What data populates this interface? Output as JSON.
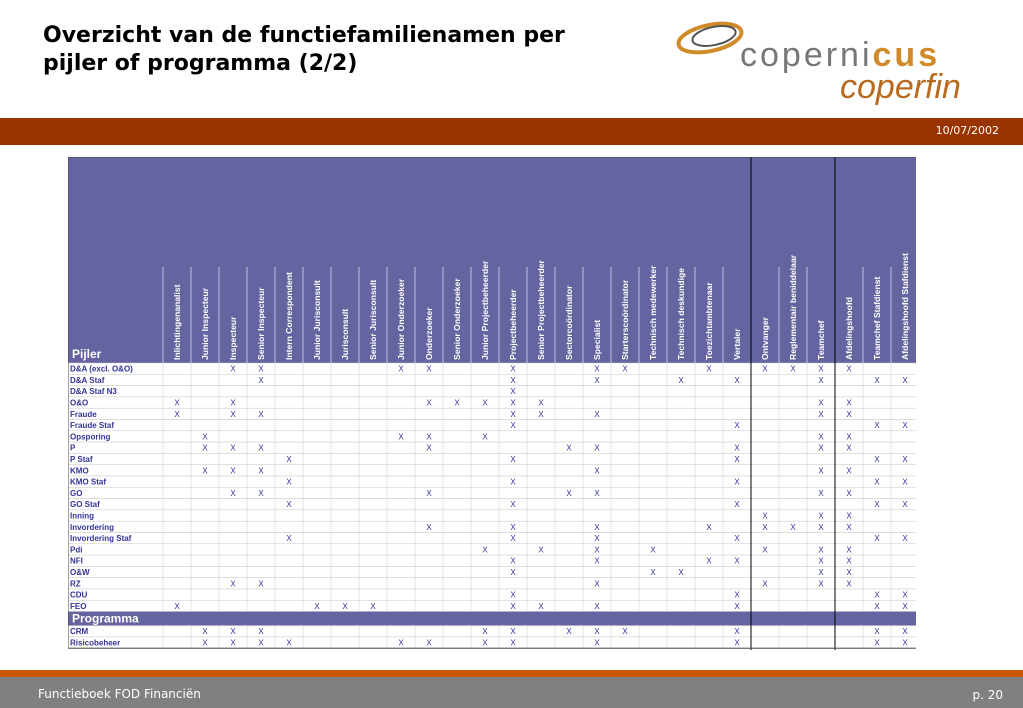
{
  "slide": {
    "title_line1": "Overzicht van de functiefamilienamen per",
    "title_line2": "pijler of programma (2/2)",
    "date": "10/07/2002",
    "footer_left": "Functieboek FOD Financiën",
    "footer_right": "p. 20"
  },
  "logo": {
    "name1": "copernicus",
    "name2": "coperfin"
  },
  "colors": {
    "header_bg": "#6464a0",
    "band": "#993300",
    "accent": "#cc5500",
    "row_text": "#333399"
  },
  "table": {
    "section_pijler": "Pijler",
    "section_programma": "Programma",
    "mark": "X",
    "columns": [
      "Inlichtingenanalist",
      "Junior Inspecteur",
      "Inspecteur",
      "Senior Inspecteur",
      "Intern Correspondent",
      "Junior Jurisconsult",
      "Jurisconsult",
      "Senior Jurisconsult",
      "Junior Onderzoeker",
      "Onderzoeker",
      "Senior Onderzoeker",
      "Junior Projectbeheerder",
      "Projectbeheerder",
      "Senior Projectbeheerder",
      "Sectorcoördinator",
      "Specialist",
      "Starterscoördinator",
      "Technisch medewerker",
      "Technisch deskundige",
      "Toezichtambtenaar",
      "Vertaler",
      "Ontvanger",
      "Reglementair beniddelaar",
      "Teamchef",
      "Afdelingshoofd",
      "Teamchef Stafdienst",
      "Afdelingshoofd Stafdienst"
    ],
    "pijler_rows": [
      {
        "label": "D&A (excl. O&O)",
        "marks": [
          2,
          3,
          8,
          9,
          12,
          15,
          16,
          19,
          21,
          22,
          23,
          24
        ]
      },
      {
        "label": "D&A Staf",
        "marks": [
          3,
          12,
          15,
          18,
          20,
          23,
          25,
          26
        ]
      },
      {
        "label": "D&A Staf N3",
        "marks": [
          12
        ]
      },
      {
        "label": "O&O",
        "marks": [
          0,
          2,
          9,
          10,
          11,
          12,
          13,
          23,
          24
        ]
      },
      {
        "label": "Fraude",
        "marks": [
          0,
          2,
          3,
          12,
          13,
          15,
          23,
          24
        ]
      },
      {
        "label": "Fraude Staf",
        "marks": [
          12,
          20,
          25,
          26
        ]
      },
      {
        "label": "Opsporing",
        "marks": [
          1,
          8,
          9,
          11,
          23,
          24
        ]
      },
      {
        "label": "P",
        "marks": [
          1,
          2,
          3,
          9,
          14,
          15,
          20,
          23,
          24
        ]
      },
      {
        "label": "P Staf",
        "marks": [
          4,
          12,
          20,
          25,
          26
        ]
      },
      {
        "label": "KMO",
        "marks": [
          1,
          2,
          3,
          15,
          23,
          24
        ]
      },
      {
        "label": "KMO Staf",
        "marks": [
          4,
          12,
          20,
          25,
          26
        ]
      },
      {
        "label": "GO",
        "marks": [
          2,
          3,
          9,
          14,
          15,
          23,
          24
        ]
      },
      {
        "label": "GO Staf",
        "marks": [
          4,
          12,
          20,
          25,
          26
        ]
      },
      {
        "label": "Inning",
        "marks": [
          21,
          23,
          24
        ]
      },
      {
        "label": "Invordering",
        "marks": [
          9,
          12,
          15,
          19,
          21,
          22,
          23,
          24
        ]
      },
      {
        "label": "Invordering Staf",
        "marks": [
          4,
          12,
          15,
          20,
          25,
          26
        ]
      },
      {
        "label": "Pdi",
        "marks": [
          11,
          13,
          15,
          17,
          21,
          23,
          24
        ]
      },
      {
        "label": "NFI",
        "marks": [
          12,
          15,
          19,
          20,
          23,
          24
        ]
      },
      {
        "label": "O&W",
        "marks": [
          12,
          17,
          18,
          23,
          24
        ]
      },
      {
        "label": "RZ",
        "marks": [
          2,
          3,
          15,
          21,
          23,
          24
        ]
      },
      {
        "label": "CDU",
        "marks": [
          12,
          20,
          25,
          26
        ]
      },
      {
        "label": "FEO",
        "marks": [
          0,
          5,
          6,
          7,
          12,
          13,
          15,
          20,
          25,
          26
        ]
      }
    ],
    "programma_rows": [
      {
        "label": "CRM",
        "marks": [
          1,
          2,
          3,
          11,
          12,
          14,
          15,
          16,
          20,
          25,
          26
        ]
      },
      {
        "label": "Risicobeheer",
        "marks": [
          1,
          2,
          3,
          4,
          8,
          9,
          11,
          12,
          15,
          20,
          25,
          26
        ]
      }
    ]
  }
}
